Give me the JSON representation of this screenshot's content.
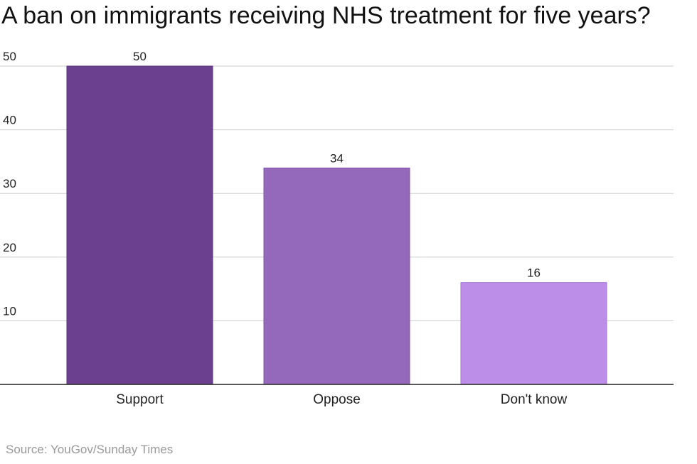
{
  "chart_data": {
    "type": "bar",
    "title": "A ban on immigrants receiving NHS treatment for five years?",
    "categories": [
      "Support",
      "Oppose",
      "Don't know"
    ],
    "values": [
      50,
      34,
      16
    ],
    "data_labels": [
      "50",
      "34",
      "16"
    ],
    "colors": [
      "#6a408f",
      "#9468bb",
      "#bd8ee8"
    ],
    "bar_stroke_colors": [
      "#5a3580",
      "#7e55a8",
      "#a677d6"
    ],
    "ylim": [
      0,
      50
    ],
    "yticks": [
      10,
      20,
      30,
      40,
      50
    ],
    "ytick_labels": [
      "10",
      "20",
      "30",
      "40",
      "50"
    ],
    "grid": true,
    "xlabel": "",
    "ylabel": ""
  },
  "source": "Source: YouGov/Sunday Times"
}
